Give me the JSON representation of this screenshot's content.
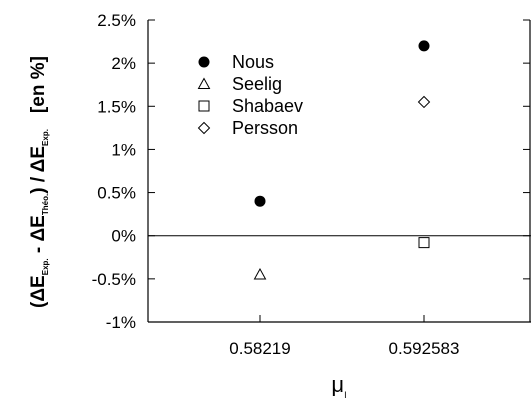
{
  "chart_data": {
    "type": "scatter",
    "categories": [
      "0.58219",
      "0.592583"
    ],
    "xlabel_main": "μ",
    "xlabel_sub": "I",
    "ylabel": {
      "open": "(",
      "delta1": "ΔE",
      "sub1": "Exp.",
      "minus": " - ",
      "delta2": "ΔE",
      "sub2": "Théo.",
      "close": ") / ",
      "delta3": "ΔE",
      "sub3": "Exp.",
      "unit": "[en %]"
    },
    "ylim": [
      -1,
      2.5
    ],
    "yticks": [
      -1,
      -0.5,
      0,
      0.5,
      1,
      1.5,
      2,
      2.5
    ],
    "ytick_labels": [
      "-1%",
      "-0.5%",
      "0%",
      "0.5%",
      "1%",
      "1.5%",
      "2%",
      "2.5%"
    ],
    "zero_line": true,
    "grid": false,
    "legend_position": "upper-left",
    "series": [
      {
        "name": "Nous",
        "marker": "filled-circle",
        "values": [
          0.4,
          2.2
        ]
      },
      {
        "name": "Seelig",
        "marker": "open-triangle",
        "values": [
          -0.45,
          null
        ]
      },
      {
        "name": "Shabaev",
        "marker": "open-square",
        "values": [
          null,
          -0.08
        ]
      },
      {
        "name": "Persson",
        "marker": "open-diamond",
        "values": [
          null,
          1.55
        ]
      }
    ]
  }
}
